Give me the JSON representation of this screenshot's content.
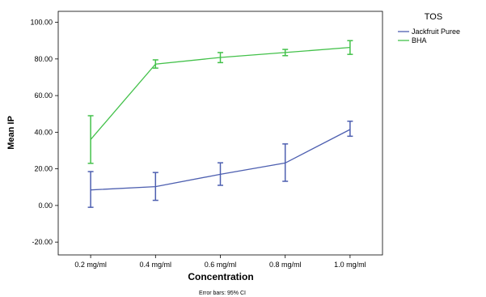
{
  "chart_data": {
    "type": "line",
    "categories": [
      "0.2 mg/ml",
      "0.4 mg/ml",
      "0.6 mg/ml",
      "0.8 mg/ml",
      "1.0 mg/ml"
    ],
    "xlabel": "Concentration",
    "ylabel": "Mean IP",
    "ylim": [
      -27,
      106
    ],
    "yticks": [
      "100.00",
      "80.00",
      "60.00",
      "40.00",
      "20.00",
      "0.00",
      "-20.00"
    ],
    "legend": {
      "title": "TOS",
      "placement": "top-right, outside plot"
    },
    "footnote": "Error bars: 95% CI",
    "series": [
      {
        "name": "Jackfruit Puree",
        "color": "#4d5fb0",
        "values": [
          8.5,
          10.3,
          17.0,
          23.2,
          41.5
        ],
        "ci_lower": [
          -1.0,
          2.8,
          11.0,
          13.2,
          37.8
        ],
        "ci_upper": [
          18.5,
          18.0,
          23.3,
          33.6,
          46.0
        ]
      },
      {
        "name": "BHA",
        "color": "#43c14a",
        "values": [
          36.0,
          77.2,
          80.8,
          83.5,
          86.3
        ],
        "ci_lower": [
          23.0,
          75.0,
          78.0,
          81.8,
          82.5
        ],
        "ci_upper": [
          49.0,
          79.5,
          83.5,
          85.2,
          90.0
        ]
      }
    ],
    "grid": false
  }
}
